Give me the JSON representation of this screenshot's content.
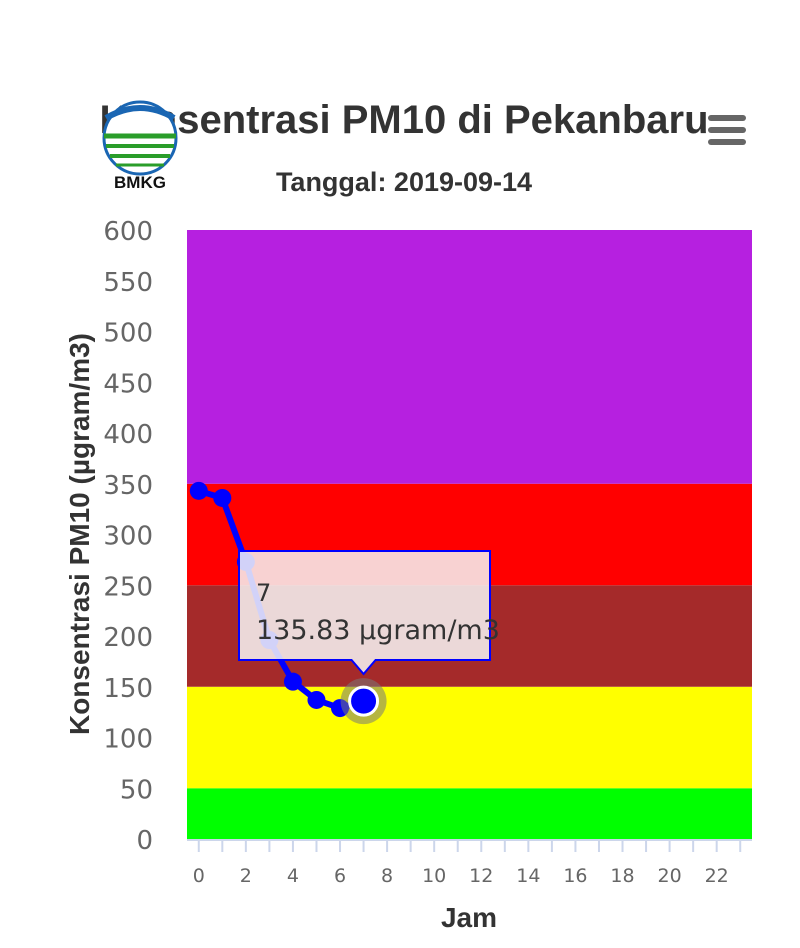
{
  "header": {
    "logo_text": "BMKG",
    "title": "Konsentrasi PM10 di Pekanbaru",
    "subtitle": "Tanggal: 2019-09-14",
    "menu_icon": "hamburger-menu-icon"
  },
  "tooltip": {
    "x_label": "7",
    "value_label": "135.83 µgram/m3"
  },
  "chart_data": {
    "type": "line",
    "title": "Konsentrasi PM10 di Pekanbaru",
    "subtitle": "Tanggal: 2019-09-14",
    "xlabel": "Jam",
    "ylabel": "Konsentrasi PM10 (µgram/m3)",
    "xlim": [
      -0.5,
      23.5
    ],
    "ylim": [
      0,
      600
    ],
    "x_ticks": [
      0,
      2,
      4,
      6,
      8,
      10,
      12,
      14,
      16,
      18,
      20,
      22
    ],
    "y_ticks": [
      0,
      50,
      100,
      150,
      200,
      250,
      300,
      350,
      400,
      450,
      500,
      550,
      600
    ],
    "bands": [
      {
        "from": 0,
        "to": 50,
        "color": "#00ff00"
      },
      {
        "from": 50,
        "to": 150,
        "color": "#ffff00"
      },
      {
        "from": 150,
        "to": 250,
        "color": "#a52a2a"
      },
      {
        "from": 250,
        "to": 350,
        "color": "#ff0000"
      },
      {
        "from": 350,
        "to": 600,
        "color": "#b620e0"
      }
    ],
    "series": [
      {
        "color": "#0000ff",
        "x": [
          0,
          1,
          2,
          3,
          4,
          5,
          6,
          7
        ],
        "y": [
          343,
          336,
          273,
          196,
          155,
          137,
          129,
          135.83
        ]
      }
    ],
    "highlight_index": 7,
    "grid": false,
    "legend": "none"
  }
}
